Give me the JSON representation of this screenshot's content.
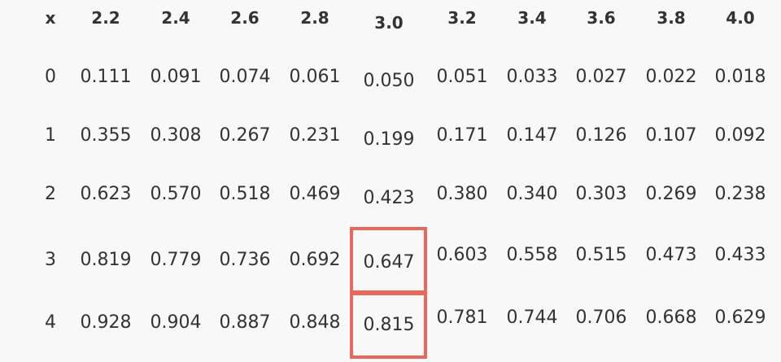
{
  "table": {
    "columns": [
      "x",
      "2.2",
      "2.4",
      "2.6",
      "2.8",
      "3.0",
      "3.2",
      "3.4",
      "3.6",
      "3.8",
      "4.0"
    ],
    "rows": [
      [
        "0",
        "0.111",
        "0.091",
        "0.074",
        "0.061",
        "0.050",
        "0.051",
        "0.033",
        "0.027",
        "0.022",
        "0.018"
      ],
      [
        "1",
        "0.355",
        "0.308",
        "0.267",
        "0.231",
        "0.199",
        "0.171",
        "0.147",
        "0.126",
        "0.107",
        "0.092"
      ],
      [
        "2",
        "0.623",
        "0.570",
        "0.518",
        "0.469",
        "0.423",
        "0.380",
        "0.340",
        "0.303",
        "0.269",
        "0.238"
      ],
      [
        "3",
        "0.819",
        "0.779",
        "0.736",
        "0.692",
        "0.647",
        "0.603",
        "0.558",
        "0.515",
        "0.473",
        "0.433"
      ],
      [
        "4",
        "0.928",
        "0.904",
        "0.887",
        "0.848",
        "0.815",
        "0.781",
        "0.744",
        "0.706",
        "0.668",
        "0.629"
      ]
    ],
    "highlighted_cells": [
      {
        "row": 3,
        "col": 5
      },
      {
        "row": 4,
        "col": 5
      }
    ]
  },
  "colors": {
    "background": "#f8f8f8",
    "text": "#333333",
    "highlight": "#e8685c"
  }
}
